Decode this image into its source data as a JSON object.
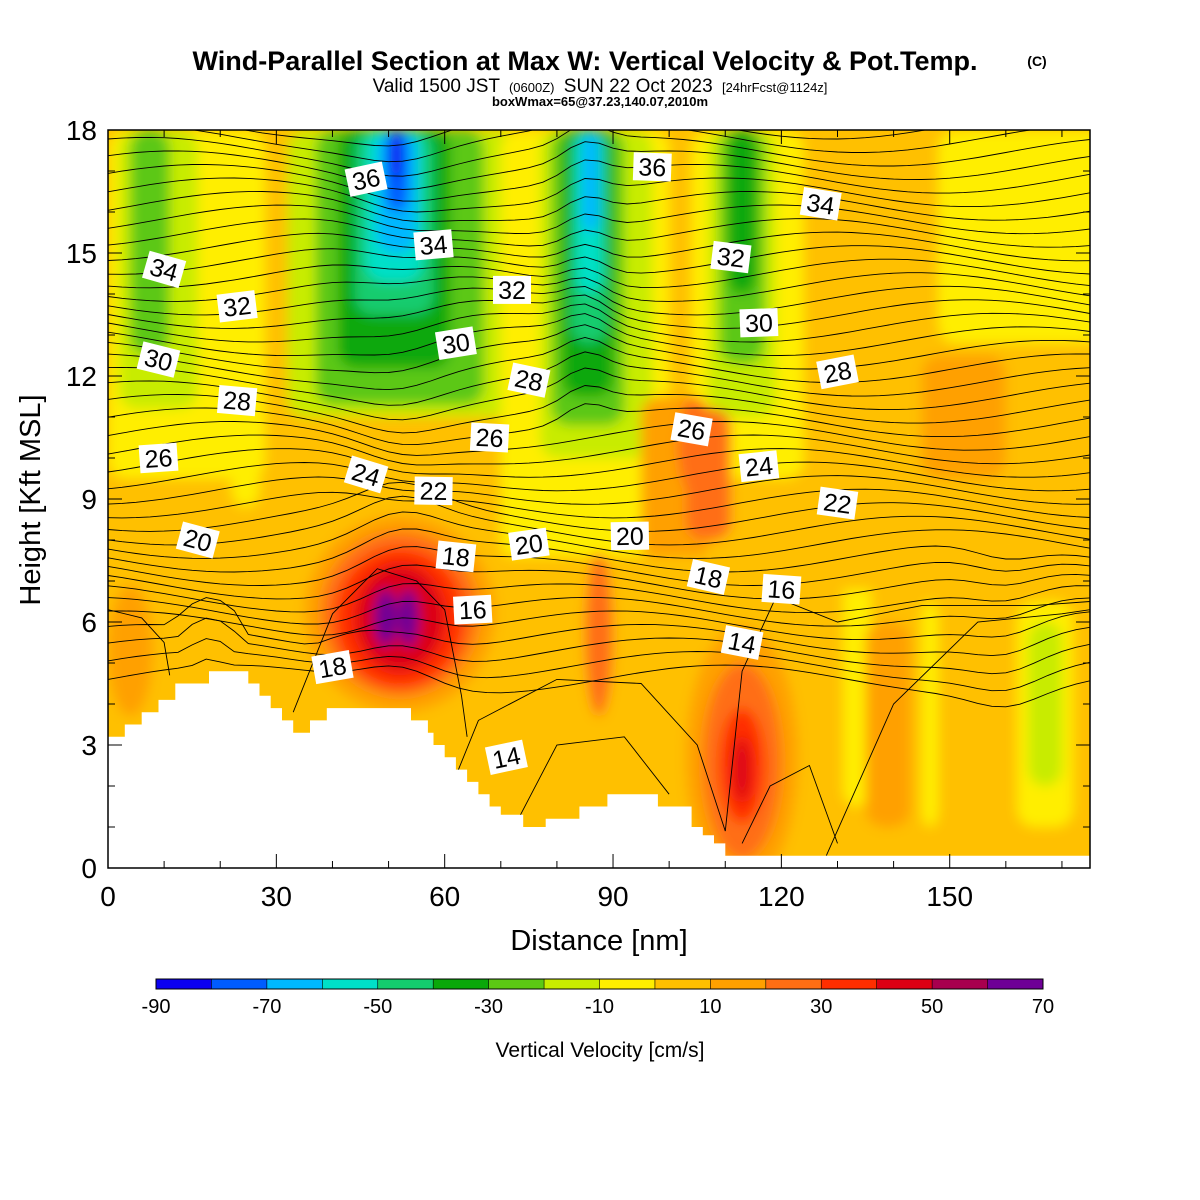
{
  "title": {
    "main": "Wind-Parallel Section at Max W: Vertical Velocity & Pot.Temp.",
    "copyright": "(C)",
    "valid_prefix": "Valid 1500 JST",
    "valid_utc": "(0600Z)",
    "valid_date": "SUN 22 Oct 2023",
    "fcst": "[24hrFcst@1124z]",
    "subtitle": "boxWmax=65@37.23,140.07,2010m"
  },
  "chart_data": {
    "type": "heatmap",
    "xlabel": "Distance [nm]",
    "ylabel": "Height [Kft MSL]",
    "xlim": [
      0,
      175
    ],
    "ylim": [
      0,
      18
    ],
    "x_ticks": [
      0,
      30,
      60,
      90,
      120,
      150
    ],
    "y_ticks": [
      0,
      3,
      6,
      9,
      12,
      15,
      18
    ],
    "colorbar": {
      "label": "Vertical Velocity [cm/s]",
      "levels": [
        -90,
        -80,
        -70,
        -60,
        -50,
        -40,
        -30,
        -20,
        -10,
        0,
        10,
        20,
        30,
        40,
        50,
        60,
        70
      ],
      "tick_labels": [
        "-90",
        "-70",
        "-50",
        "-30",
        "-10",
        "10",
        "30",
        "50",
        "70"
      ],
      "colors": [
        "#0b00f0",
        "#005cff",
        "#00b8ff",
        "#00e0c8",
        "#14cc6e",
        "#0aa80a",
        "#5cc814",
        "#c8ec00",
        "#ffee00",
        "#ffc000",
        "#ffa000",
        "#ff6e14",
        "#ff2e00",
        "#dc0014",
        "#a8004e",
        "#6e0096"
      ]
    },
    "vertical_velocity_features": [
      {
        "type": "updraft",
        "x": 52,
        "y": 6.0,
        "peak_cm_s": 65
      },
      {
        "type": "updraft",
        "x": 113,
        "y": 2.5,
        "peak_cm_s": 35
      },
      {
        "type": "downdraft",
        "x": 51,
        "y": 17.5,
        "peak_cm_s": -90
      },
      {
        "type": "downdraft",
        "x": 85,
        "y": 17.0,
        "peak_cm_s": -60
      },
      {
        "type": "downdraft",
        "x": 112,
        "y": 16.5,
        "peak_cm_s": -40
      },
      {
        "type": "downdraft",
        "x": 5,
        "y": 14.0,
        "peak_cm_s": -30
      }
    ],
    "theta_contour_labels": [
      {
        "text": "36",
        "x": 46,
        "y": 16.8
      },
      {
        "text": "34",
        "x": 58,
        "y": 15.2
      },
      {
        "text": "36",
        "x": 97,
        "y": 17.1
      },
      {
        "text": "34",
        "x": 127,
        "y": 16.2
      },
      {
        "text": "34",
        "x": 10,
        "y": 14.6
      },
      {
        "text": "32",
        "x": 23,
        "y": 13.7
      },
      {
        "text": "32",
        "x": 72,
        "y": 14.1
      },
      {
        "text": "32",
        "x": 111,
        "y": 14.9
      },
      {
        "text": "30",
        "x": 9,
        "y": 12.4
      },
      {
        "text": "30",
        "x": 62,
        "y": 12.8
      },
      {
        "text": "30",
        "x": 116,
        "y": 13.3
      },
      {
        "text": "28",
        "x": 23,
        "y": 11.4
      },
      {
        "text": "28",
        "x": 75,
        "y": 11.9
      },
      {
        "text": "28",
        "x": 130,
        "y": 12.1
      },
      {
        "text": "26",
        "x": 9,
        "y": 10.0
      },
      {
        "text": "26",
        "x": 68,
        "y": 10.5
      },
      {
        "text": "26",
        "x": 104,
        "y": 10.7
      },
      {
        "text": "24",
        "x": 46,
        "y": 9.6
      },
      {
        "text": "24",
        "x": 116,
        "y": 9.8
      },
      {
        "text": "22",
        "x": 58,
        "y": 9.2
      },
      {
        "text": "22",
        "x": 130,
        "y": 8.9
      },
      {
        "text": "20",
        "x": 16,
        "y": 8.0
      },
      {
        "text": "20",
        "x": 75,
        "y": 7.9
      },
      {
        "text": "20",
        "x": 93,
        "y": 8.1
      },
      {
        "text": "18",
        "x": 62,
        "y": 7.6
      },
      {
        "text": "18",
        "x": 107,
        "y": 7.1
      },
      {
        "text": "18",
        "x": 40,
        "y": 4.9
      },
      {
        "text": "16",
        "x": 65,
        "y": 6.3
      },
      {
        "text": "16",
        "x": 120,
        "y": 6.8
      },
      {
        "text": "14",
        "x": 113,
        "y": 5.5
      },
      {
        "text": "14",
        "x": 71,
        "y": 2.7
      }
    ]
  }
}
